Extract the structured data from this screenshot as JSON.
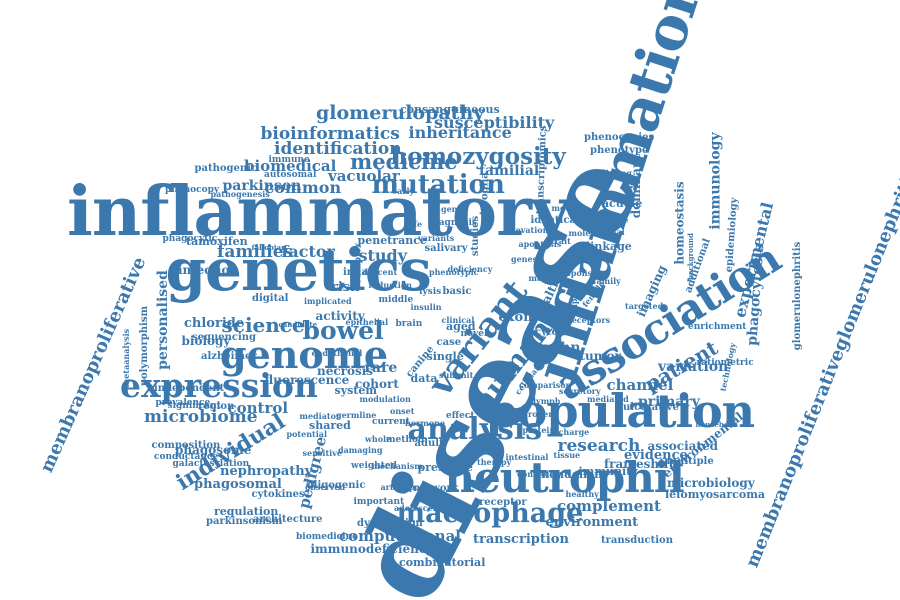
{
  "palette": {
    "word": "#3b78ad",
    "background": "#ffffff"
  },
  "words": [
    "disease",
    "inflammatory",
    "genetics",
    "inflammation",
    "population",
    "association",
    "neutrophil",
    "genome",
    "expression",
    "variant",
    "human",
    "analysis",
    "mutation",
    "membranoproliferative",
    "membranoproliferativeglomerulonephritis",
    "macrophage",
    "medicine",
    "homozygosity",
    "bowel",
    "individual",
    "science",
    "patient",
    "glomerulopathy",
    "bioinformatics",
    "identification",
    "inheritance",
    "susceptibility",
    "families",
    "factor",
    "study",
    "common",
    "biomedical",
    "vacuolar",
    "parkinson",
    "familial",
    "immunology",
    "experimental",
    "phagocytosis",
    "crohn",
    "microbiome",
    "control",
    "chloride",
    "biology",
    "pedigree",
    "research",
    "complement",
    "environment",
    "computational",
    "transcription",
    "immunodeficiency",
    "combinatorial",
    "microbiology",
    "leiomyosarcoma",
    "phagosomal",
    "variation",
    "channel",
    "primary",
    "exome",
    "health",
    "cell",
    "rare",
    "risk",
    "infection",
    "personalised",
    "polymorphism",
    "metaanalysis",
    "phenocopies",
    "phenotype",
    "dominant",
    "vacuole",
    "linkage",
    "homeostasis",
    "imaging",
    "epidemiology",
    "glomerulonephritis",
    "frameshift",
    "multiple",
    "evidence",
    "associated",
    "environmental",
    "immunity",
    "mendelian",
    "presence",
    "network",
    "receptor",
    "regulation",
    "architecture",
    "parkinsonism",
    "nephropathy",
    "cytokines",
    "ulcerative",
    "cytokine",
    "tumor",
    "region",
    "significant",
    "composition",
    "conductance",
    "galactosylation",
    "sequencing",
    "alzheimer",
    "fluorescence",
    "necrosis",
    "cohort",
    "data",
    "system",
    "shared",
    "activity",
    "digital",
    "tamoxifen",
    "phagosome",
    "phagocytic",
    "phenocopy",
    "pathogenesis",
    "pathogenic",
    "consanguineous",
    "transcriptomics",
    "immune",
    "autosomal",
    "penetrance",
    "innate",
    "middle",
    "basic",
    "aged",
    "case",
    "single",
    "brain",
    "independent",
    "prevalence",
    "enrichment",
    "ratiometric",
    "dysfunction",
    "biomedicine",
    "important",
    "transduction",
    "adult",
    "method",
    "effect",
    "current",
    "studies",
    "diagnosis",
    "conflicting",
    "identical",
    "microglia",
    "salivary",
    "additional",
    "technology",
    "background",
    "household",
    "mediated",
    "protein",
    "coding",
    "level",
    "novel",
    "weighted",
    "oligogenic",
    "damaging",
    "sensitive",
    "mechanism",
    "adolescent",
    "potential",
    "mediator",
    "observed",
    "germline",
    "marker",
    "canine",
    "complex",
    "fallopian",
    "implicated",
    "candidate",
    "clinical",
    "lysis",
    "insulin",
    "female",
    "response",
    "family",
    "descent",
    "reduction",
    "lymph",
    "rodent",
    "charge",
    "tissue",
    "secretory",
    "comparison",
    "cellular",
    "trait",
    "onset",
    "whole",
    "stress",
    "signal",
    "lipid",
    "hormone",
    "modulation",
    "arthropod",
    "endothelial",
    "subunit",
    "epithelial",
    "receptors",
    "apoptosis",
    "phenotypic",
    "mouse",
    "oxidative",
    "targeted",
    "deficiency",
    "elevation",
    "molecular",
    "variants",
    "early",
    "life",
    "gene",
    "genes",
    "healthy",
    "control",
    "therapy",
    "intestinal",
    "colitis",
    "pathway",
    "function",
    "sibling",
    "distinct",
    "genomic"
  ]
}
